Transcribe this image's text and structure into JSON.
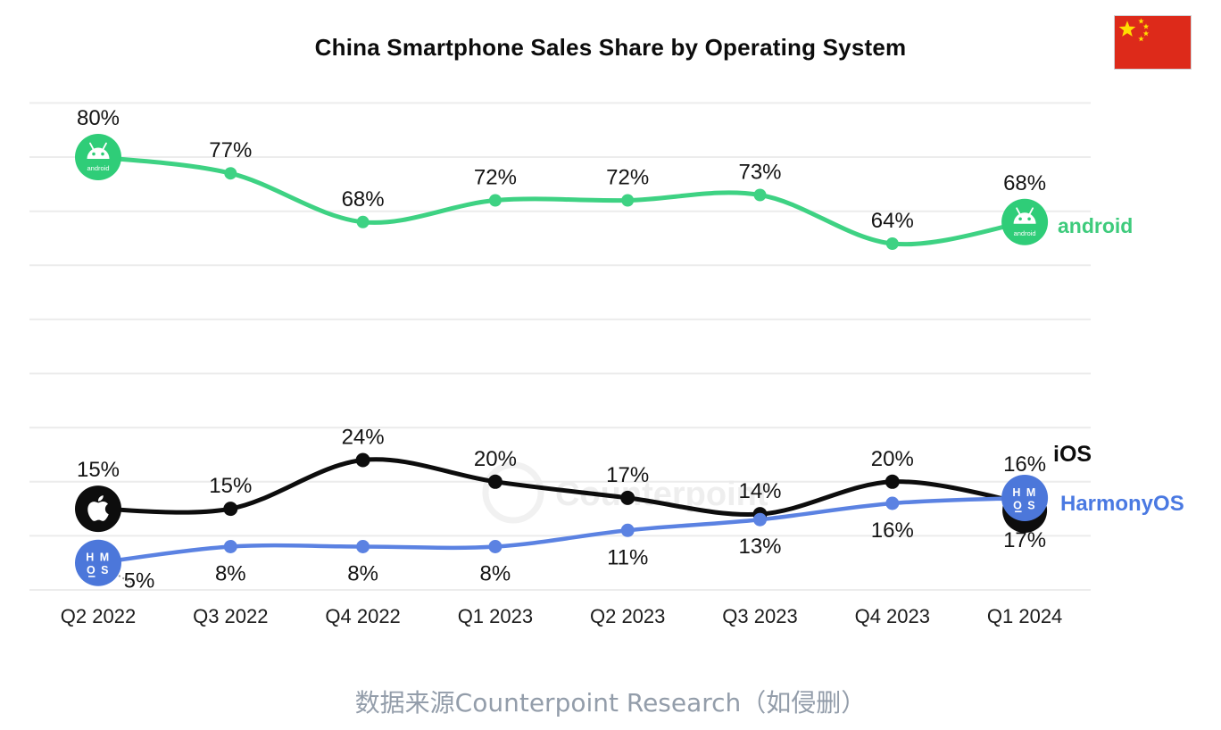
{
  "title": "China Smartphone Sales Share by Operating System",
  "caption": "数据来源Counterpoint Research（如侵删）",
  "watermark": "Counterpoint",
  "flag": {
    "country": "China",
    "field_color": "#dd2a1a",
    "star_color": "#ffde00"
  },
  "chart_data": {
    "type": "line",
    "title": "China Smartphone Sales Share by Operating System",
    "categories": [
      "Q2 2022",
      "Q3 2022",
      "Q4 2022",
      "Q1 2023",
      "Q2 2023",
      "Q3 2023",
      "Q4 2023",
      "Q1 2024"
    ],
    "value_suffix": "%",
    "ylim": [
      0,
      90
    ],
    "grid": true,
    "legend_position": "right-of-line-end",
    "series": [
      {
        "name": "Android",
        "legend_label": "android",
        "color": "#3ed283",
        "icon": "android-robot",
        "icon_color": "#2fcd78",
        "label_side": "above",
        "values": [
          80,
          77,
          68,
          72,
          72,
          73,
          64,
          68
        ]
      },
      {
        "name": "iOS",
        "legend_label": "iOS",
        "color": "#0d0d0d",
        "icon": "apple-logo",
        "icon_color": "#0d0d0d",
        "label_side": "above",
        "values": [
          15,
          15,
          24,
          20,
          17,
          14,
          20,
          16
        ]
      },
      {
        "name": "HarmonyOS",
        "legend_label": "HarmonyOS",
        "color": "#5b82e2",
        "icon": "hmos-badge",
        "icon_color": "#4c77da",
        "label_side": "below",
        "values": [
          5,
          8,
          8,
          8,
          11,
          13,
          16,
          17
        ]
      }
    ]
  }
}
